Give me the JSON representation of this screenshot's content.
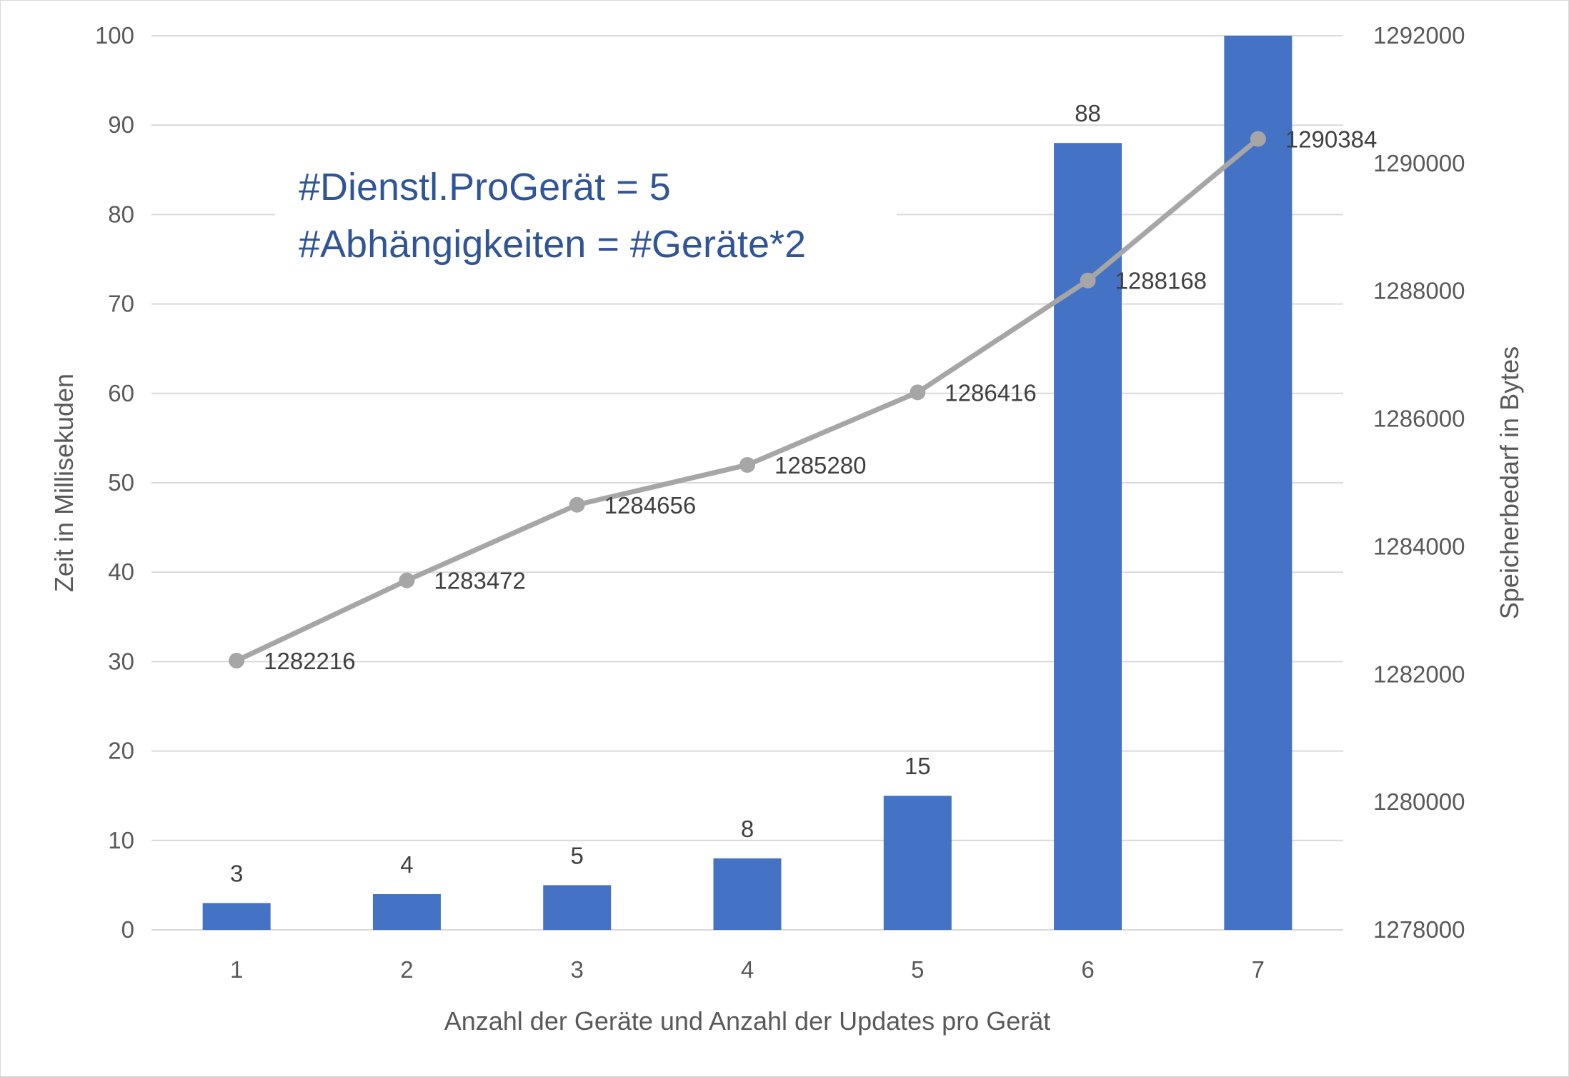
{
  "chart_data": {
    "type": "bar",
    "categories": [
      "1",
      "2",
      "3",
      "4",
      "5",
      "6",
      "7"
    ],
    "series": [
      {
        "type": "bar",
        "axis": "left",
        "color": "#4472c4",
        "values": [
          3,
          4,
          5,
          8,
          15,
          88,
          100
        ],
        "data_labels": [
          "3",
          "4",
          "5",
          "8",
          "15",
          "88",
          ""
        ]
      },
      {
        "type": "line",
        "axis": "right",
        "color": "#a6a6a6",
        "values": [
          1282216,
          1283472,
          1284656,
          1285280,
          1286416,
          1288168,
          1290384
        ],
        "data_labels": [
          "1282216",
          "1283472",
          "1284656",
          "1285280",
          "1286416",
          "1288168",
          "1290384"
        ]
      }
    ],
    "xlabel": "Anzahl der Geräte und Anzahl der Updates pro Gerät",
    "ylabel": "Zeit in Millisekuden",
    "y2label": "Speicherbedarf in Bytes",
    "ylim": [
      0,
      100
    ],
    "y2lim": [
      1278000,
      1292000
    ],
    "yticks": [
      "0",
      "10",
      "20",
      "30",
      "40",
      "50",
      "60",
      "70",
      "80",
      "90",
      "100"
    ],
    "y2ticks": [
      "1278000",
      "1280000",
      "1282000",
      "1284000",
      "1286000",
      "1288000",
      "1290000",
      "1292000"
    ],
    "annotation": [
      "#Dienstl.ProGerät = 5",
      "#Abhängigkeiten = #Geräte*2"
    ],
    "grid": true,
    "legend": "none"
  }
}
